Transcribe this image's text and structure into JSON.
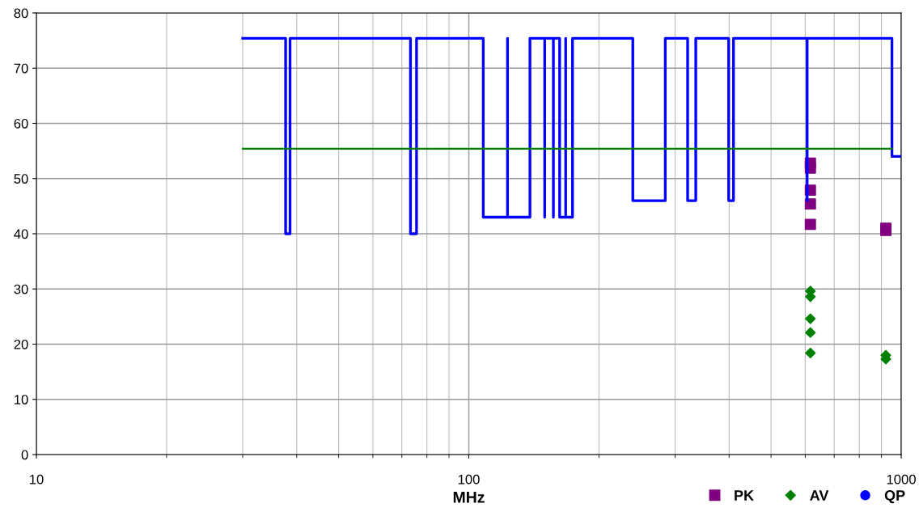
{
  "chart_data": {
    "type": "line",
    "xlabel": "MHz",
    "log": "x",
    "xlim": [
      10,
      1000
    ],
    "xticks": [
      10,
      100,
      1000
    ],
    "ylim": [
      0,
      80
    ],
    "yticks": [
      0,
      10,
      20,
      30,
      40,
      50,
      60,
      70,
      80
    ],
    "grid": true,
    "legend": "bottom right",
    "series": [
      {
        "type": "scatter",
        "name": "PK",
        "color": "#800080",
        "marker": "square",
        "x": [
          616.6,
          616.6,
          616.6,
          616.6,
          616.6,
          921.5,
          921.5
        ],
        "values": [
          52.8,
          51.9,
          47.9,
          45.4,
          41.7,
          41.0,
          40.6
        ]
      },
      {
        "type": "scatter",
        "name": "AV",
        "color": "#008000",
        "marker": "diamond",
        "x": [
          616.6,
          616.6,
          616.6,
          616.6,
          616.6,
          921.5,
          921.5
        ],
        "values": [
          29.6,
          28.6,
          24.6,
          22.1,
          18.4,
          18.0,
          17.3
        ]
      },
      {
        "name": "QP",
        "color": "#0000ff",
        "marker": "none",
        "x": [
          30,
          37.7,
          37.7,
          38.6,
          38.6,
          73.3,
          73.3,
          75.7,
          75.7,
          108,
          108,
          122.9,
          122.9,
          122.9,
          138.5,
          138.5,
          149.8,
          149.8,
          149.8,
          156.9,
          156.9,
          156.9,
          162.2,
          162.2,
          167.5,
          167.5,
          167.5,
          173.7,
          173.7,
          239.5,
          239.5,
          284.7,
          284.7,
          320.7,
          320.7,
          334.9,
          334.9,
          399,
          399,
          409.4,
          409.4,
          606,
          606,
          606,
          952,
          952,
          1000
        ],
        "values": [
          75.4,
          75.4,
          40,
          40,
          75.4,
          75.4,
          40,
          40,
          75.4,
          75.4,
          43,
          43,
          75.4,
          43,
          43,
          75.4,
          75.4,
          43,
          75.4,
          75.4,
          43,
          75.4,
          75.4,
          43,
          43,
          75.4,
          43,
          43,
          75.4,
          75.4,
          46,
          46,
          75.4,
          75.4,
          46,
          46,
          75.4,
          75.4,
          46,
          46,
          75.4,
          75.4,
          46,
          75.4,
          75.4,
          54,
          54
        ]
      },
      {
        "color": "#008000",
        "marker": "none",
        "x": [
          30,
          952
        ],
        "values": [
          55.4,
          55.4
        ]
      }
    ]
  }
}
